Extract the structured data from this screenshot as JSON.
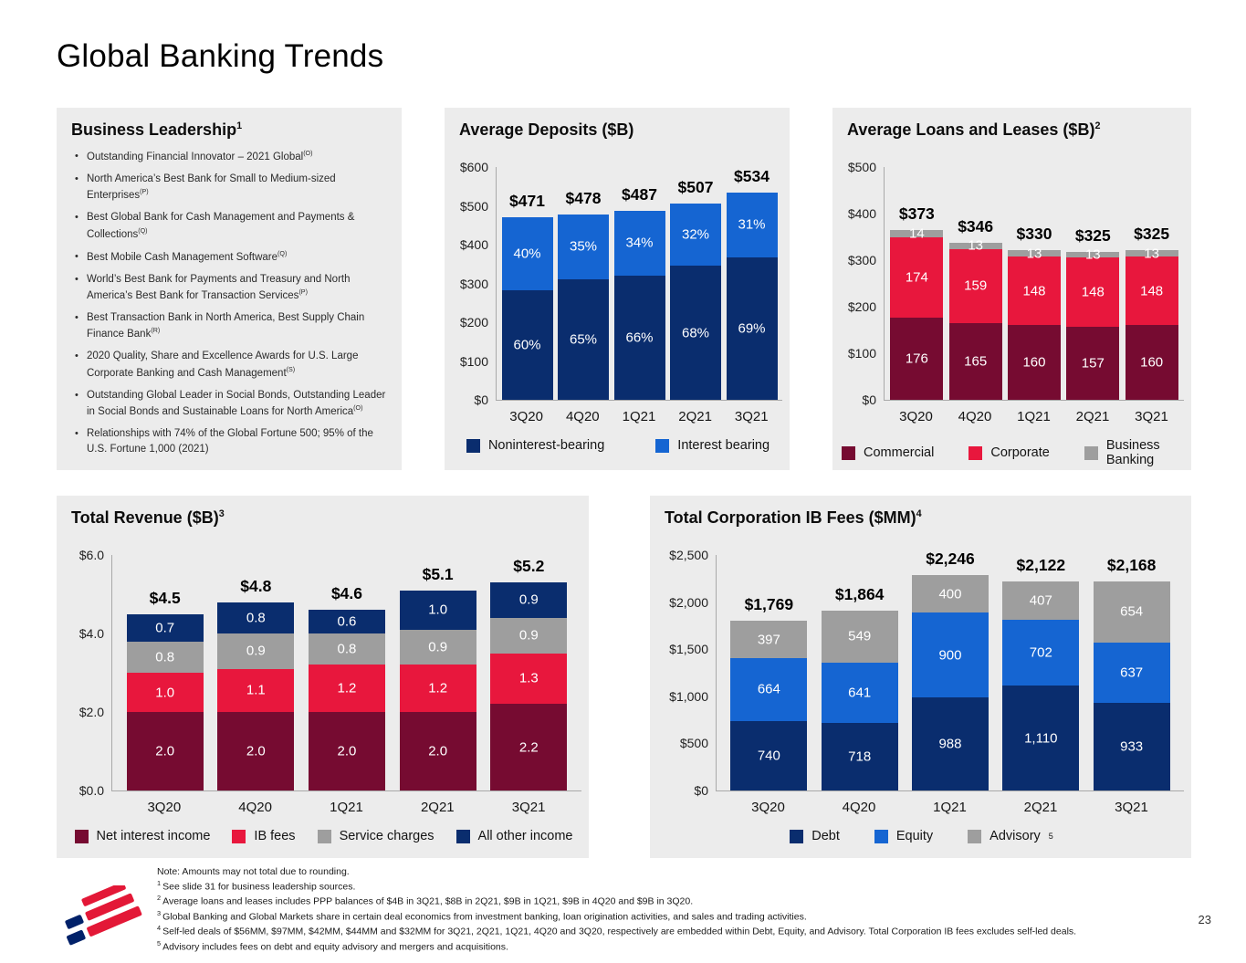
{
  "page": {
    "title": "Global Banking Trends",
    "page_number": "23"
  },
  "colors": {
    "navy": "#0A2D6E",
    "bright_blue": "#1565D2",
    "maroon": "#760B31",
    "red": "#E8173D",
    "gray": "#9E9E9E",
    "panel_bg": "#ECECEC",
    "logo_blue": "#012169",
    "logo_red": "#E31837"
  },
  "business_leadership": {
    "title": "Business Leadership",
    "title_sup": "1",
    "bullets": [
      {
        "text": "Outstanding Financial Innovator – 2021 Global",
        "sup": "(O)"
      },
      {
        "text": "North America’s Best Bank for Small to Medium-sized Enterprises",
        "sup": "(P)"
      },
      {
        "text": "Best Global Bank for Cash Management and Payments & Collections",
        "sup": "(Q)"
      },
      {
        "text": "Best Mobile Cash Management Software",
        "sup": "(Q)"
      },
      {
        "text": "World’s Best Bank for Payments and Treasury and North America’s Best Bank for Transaction Services",
        "sup": "(P)"
      },
      {
        "text": "Best Transaction Bank in North America, Best Supply Chain Finance Bank",
        "sup": "(R)"
      },
      {
        "text": "2020 Quality, Share and Excellence Awards for U.S. Large Corporate Banking and Cash Management",
        "sup": "(S)"
      },
      {
        "text": "Outstanding Global Leader in Social Bonds, Outstanding Leader in Social Bonds and Sustainable Loans for North America",
        "sup": "(O)"
      },
      {
        "text": "Relationships with 74% of the Global Fortune 500; 95% of the U.S. Fortune 1,000 (2021)",
        "sup": ""
      }
    ]
  },
  "chart_data": [
    {
      "type": "bar",
      "stacked": true,
      "title": "Average Deposits ($B)",
      "title_sup": "",
      "categories": [
        "3Q20",
        "4Q20",
        "1Q21",
        "2Q21",
        "3Q21"
      ],
      "ylim": [
        0,
        600
      ],
      "grid": false,
      "legend_position": "bottom",
      "yticks": [
        {
          "value": 0,
          "label": "$0"
        },
        {
          "value": 100,
          "label": "$100"
        },
        {
          "value": 200,
          "label": "$200"
        },
        {
          "value": 300,
          "label": "$300"
        },
        {
          "value": 400,
          "label": "$400"
        },
        {
          "value": 500,
          "label": "$500"
        },
        {
          "value": 600,
          "label": "$600"
        }
      ],
      "series": [
        {
          "name": "Noninterest-bearing",
          "sup": "",
          "color": "#0A2D6E",
          "values": [
            283,
            311,
            321,
            345,
            368
          ],
          "labels": [
            "60%",
            "65%",
            "66%",
            "68%",
            "69%"
          ]
        },
        {
          "name": "Interest bearing",
          "sup": "",
          "color": "#1565D2",
          "values": [
            188,
            167,
            166,
            162,
            166
          ],
          "labels": [
            "40%",
            "35%",
            "34%",
            "32%",
            "31%"
          ]
        }
      ],
      "totals": [
        "$471",
        "$478",
        "$487",
        "$507",
        "$534"
      ]
    },
    {
      "type": "bar",
      "stacked": true,
      "title": "Average Loans and Leases ($B)",
      "title_sup": "2",
      "categories": [
        "3Q20",
        "4Q20",
        "1Q21",
        "2Q21",
        "3Q21"
      ],
      "ylim": [
        0,
        500
      ],
      "grid": false,
      "legend_position": "bottom",
      "yticks": [
        {
          "value": 0,
          "label": "$0"
        },
        {
          "value": 100,
          "label": "$100"
        },
        {
          "value": 200,
          "label": "$200"
        },
        {
          "value": 300,
          "label": "$300"
        },
        {
          "value": 400,
          "label": "$400"
        },
        {
          "value": 500,
          "label": "$500"
        }
      ],
      "series": [
        {
          "name": "Commercial",
          "sup": "",
          "color": "#760B31",
          "values": [
            176,
            165,
            160,
            157,
            160
          ],
          "labels": [
            "176",
            "165",
            "160",
            "157",
            "160"
          ]
        },
        {
          "name": "Corporate",
          "sup": "",
          "color": "#E8173D",
          "values": [
            174,
            159,
            148,
            148,
            148
          ],
          "labels": [
            "174",
            "159",
            "148",
            "148",
            "148"
          ]
        },
        {
          "name": "Business Banking",
          "sup": "",
          "color": "#9E9E9E",
          "values": [
            14,
            13,
            13,
            13,
            13
          ],
          "labels": [
            "14",
            "13",
            "13",
            "13",
            "13"
          ]
        }
      ],
      "totals": [
        "$373",
        "$346",
        "$330",
        "$325",
        "$325"
      ]
    },
    {
      "type": "bar",
      "stacked": true,
      "title": "Total Revenue ($B)",
      "title_sup": "3",
      "categories": [
        "3Q20",
        "4Q20",
        "1Q21",
        "2Q21",
        "3Q21"
      ],
      "ylim": [
        0,
        6.0
      ],
      "grid": false,
      "legend_position": "bottom",
      "yticks": [
        {
          "value": 0,
          "label": "$0.0"
        },
        {
          "value": 2,
          "label": "$2.0"
        },
        {
          "value": 4,
          "label": "$4.0"
        },
        {
          "value": 6,
          "label": "$6.0"
        }
      ],
      "series": [
        {
          "name": "Net interest income",
          "sup": "",
          "color": "#760B31",
          "values": [
            2.0,
            2.0,
            2.0,
            2.0,
            2.2
          ],
          "labels": [
            "2.0",
            "2.0",
            "2.0",
            "2.0",
            "2.2"
          ]
        },
        {
          "name": "IB fees",
          "sup": "",
          "color": "#E8173D",
          "values": [
            1.0,
            1.1,
            1.2,
            1.2,
            1.3
          ],
          "labels": [
            "1.0",
            "1.1",
            "1.2",
            "1.2",
            "1.3"
          ]
        },
        {
          "name": "Service charges",
          "sup": "",
          "color": "#9E9E9E",
          "values": [
            0.8,
            0.9,
            0.8,
            0.9,
            0.9
          ],
          "labels": [
            "0.8",
            "0.9",
            "0.8",
            "0.9",
            "0.9"
          ]
        },
        {
          "name": "All other income",
          "sup": "",
          "color": "#0A2D6E",
          "values": [
            0.7,
            0.8,
            0.6,
            1.0,
            0.9
          ],
          "labels": [
            "0.7",
            "0.8",
            "0.6",
            "1.0",
            "0.9"
          ]
        }
      ],
      "totals": [
        "$4.5",
        "$4.8",
        "$4.6",
        "$5.1",
        "$5.2"
      ]
    },
    {
      "type": "bar",
      "stacked": true,
      "title": "Total Corporation IB Fees ($MM)",
      "title_sup": "4",
      "categories": [
        "3Q20",
        "4Q20",
        "1Q21",
        "2Q21",
        "3Q21"
      ],
      "ylim": [
        0,
        2500
      ],
      "grid": false,
      "legend_position": "bottom",
      "yticks": [
        {
          "value": 0,
          "label": "$0"
        },
        {
          "value": 500,
          "label": "$500"
        },
        {
          "value": 1000,
          "label": "$1,000"
        },
        {
          "value": 1500,
          "label": "$1,500"
        },
        {
          "value": 2000,
          "label": "$2,000"
        },
        {
          "value": 2500,
          "label": "$2,500"
        }
      ],
      "series": [
        {
          "name": "Debt",
          "sup": "",
          "color": "#0A2D6E",
          "values": [
            740,
            718,
            988,
            1110,
            933
          ],
          "labels": [
            "740",
            "718",
            "988",
            "1,110",
            "933"
          ]
        },
        {
          "name": "Equity",
          "sup": "",
          "color": "#1565D2",
          "values": [
            664,
            641,
            900,
            702,
            637
          ],
          "labels": [
            "664",
            "641",
            "900",
            "702",
            "637"
          ]
        },
        {
          "name": "Advisory",
          "sup": "5",
          "color": "#9E9E9E",
          "values": [
            397,
            549,
            400,
            407,
            654
          ],
          "labels": [
            "397",
            "549",
            "400",
            "407",
            "654"
          ]
        }
      ],
      "totals": [
        "$1,769",
        "$1,864",
        "$2,246",
        "$2,122",
        "$2,168"
      ]
    }
  ],
  "footnotes": [
    {
      "sup": "",
      "text": "Note: Amounts may not total due to rounding."
    },
    {
      "sup": "1",
      "text": "See slide 31 for business leadership sources."
    },
    {
      "sup": "2",
      "text": "Average loans and leases includes PPP balances of $4B in 3Q21, $8B in 2Q21, $9B in 1Q21, $9B in 4Q20 and $9B in 3Q20."
    },
    {
      "sup": "3",
      "text": "Global Banking and Global Markets share in certain deal economics from investment banking, loan origination activities, and sales and trading activities."
    },
    {
      "sup": "4",
      "text": "Self-led deals of $56MM, $97MM, $42MM, $44MM and $32MM for 3Q21, 2Q21, 1Q21, 4Q20 and 3Q20, respectively are embedded within Debt, Equity, and Advisory. Total Corporation IB fees excludes self-led deals."
    },
    {
      "sup": "5",
      "text": "Advisory includes fees on debt and equity advisory and mergers and acquisitions."
    }
  ]
}
